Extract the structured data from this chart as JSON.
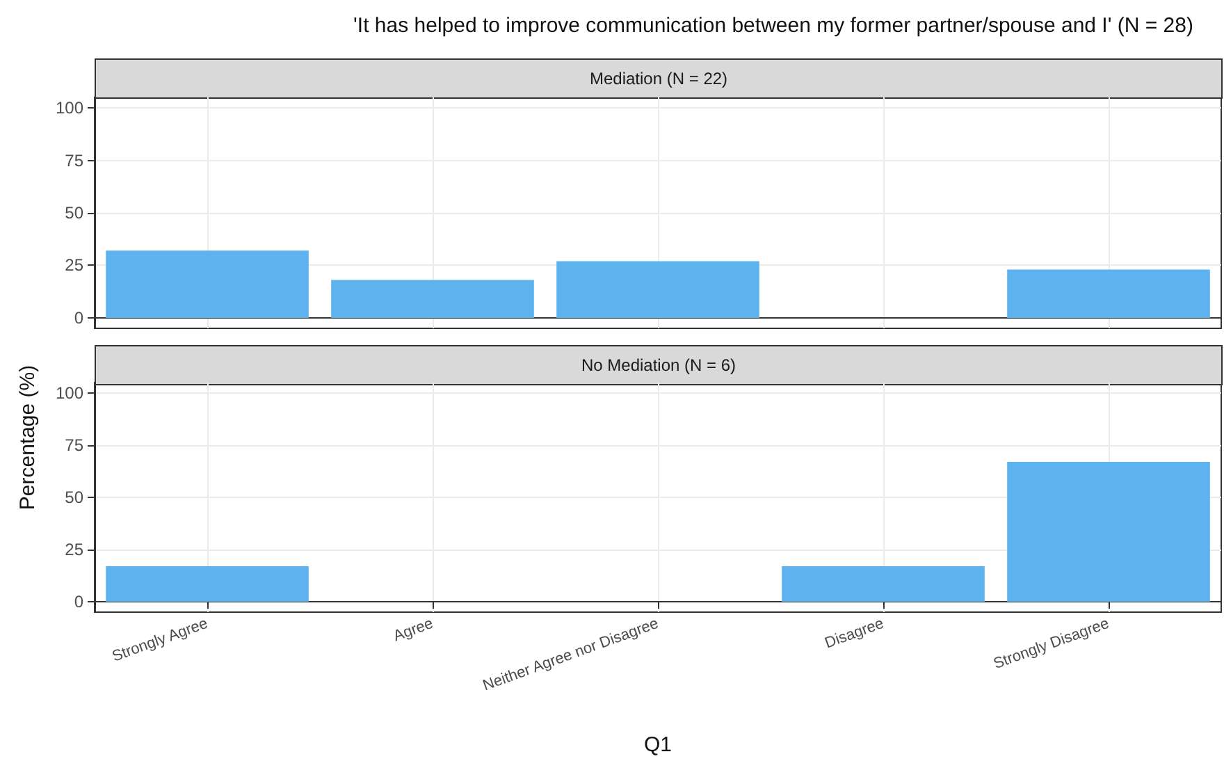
{
  "chart_data": [
    {
      "type": "bar",
      "title": "'It has helped to improve communication between my former partner/spouse and I' (N = 28)",
      "subtitle": "Mediation (N = 22)",
      "ylabel": "Percentage (%)",
      "categories": [
        null,
        null,
        null,
        null,
        null
      ],
      "values": [
        32,
        18,
        27,
        0,
        23
      ],
      "color": "#5db3ee",
      "ylim": [
        -5,
        105
      ],
      "yticks": [
        0,
        25,
        50,
        75,
        100
      ],
      "grid": true,
      "tick_labels": "y"
    },
    {
      "type": "bar",
      "subtitle": "No Mediation (N = 6)",
      "xlabel": "Q1",
      "categories": [
        "Strongly Agree",
        "Agree",
        "Neither Agree nor Disagree",
        "Disagree",
        "Strongly Disagree"
      ],
      "values": [
        17,
        0,
        0,
        17,
        67
      ],
      "color": "#5db3ee",
      "ylim": [
        -5,
        105
      ],
      "yticks": [
        0,
        25,
        50,
        75,
        100
      ],
      "grid": true
    }
  ]
}
